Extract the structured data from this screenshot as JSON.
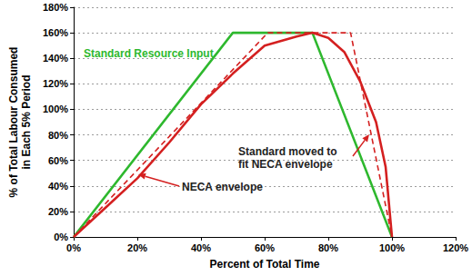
{
  "chart_data": {
    "type": "line",
    "x_label": "Percent of Total Time",
    "y_label": "% of Total Labour Consumed\nin Each 5% Period",
    "xlim": [
      0,
      120
    ],
    "xticks": [
      {
        "value": 0,
        "label": "0%"
      },
      {
        "value": 20,
        "label": "20%"
      },
      {
        "value": 40,
        "label": "40%"
      },
      {
        "value": 60,
        "label": "60%"
      },
      {
        "value": 80,
        "label": "80%"
      },
      {
        "value": 100,
        "label": "100%"
      },
      {
        "value": 120,
        "label": "120%"
      }
    ],
    "ylim": [
      0,
      180
    ],
    "yticks": [
      {
        "value": 0,
        "label": "0%"
      },
      {
        "value": 20,
        "label": "20%"
      },
      {
        "value": 40,
        "label": "40%"
      },
      {
        "value": 60,
        "label": "60%"
      },
      {
        "value": 80,
        "label": "80%"
      },
      {
        "value": 100,
        "label": "100%"
      },
      {
        "value": 120,
        "label": "120%"
      },
      {
        "value": 140,
        "label": "140%"
      },
      {
        "value": 160,
        "label": "160%"
      },
      {
        "value": 180,
        "label": "180%"
      }
    ],
    "grid": true,
    "series": [
      {
        "name": "Standard Resource Input",
        "color": "#2eb82e",
        "line_style": "solid",
        "x": [
          0,
          50,
          75,
          100
        ],
        "values": [
          0,
          160,
          160,
          0
        ]
      },
      {
        "name": "Standard moved to fit NECA envelope",
        "color": "#d42020",
        "line_style": "dashed",
        "x": [
          0,
          61,
          87,
          100
        ],
        "values": [
          0,
          160,
          160,
          0
        ]
      },
      {
        "name": "NECA envelope",
        "color": "#d42020",
        "line_style": "solid",
        "x": [
          0,
          10,
          20,
          30,
          40,
          50,
          60,
          70,
          75,
          80,
          85,
          90,
          95,
          98,
          100
        ],
        "values": [
          0,
          23,
          46,
          74,
          104,
          128,
          150,
          157,
          160,
          156,
          145,
          122,
          90,
          55,
          0
        ]
      }
    ],
    "annotations": [
      {
        "text": "Standard Resource Input",
        "color": "#2eb82e"
      },
      {
        "text": "Standard moved to\nfit NECA envelope",
        "color": "#222222"
      },
      {
        "text": "NECA envelope",
        "color": "#222222"
      }
    ]
  }
}
